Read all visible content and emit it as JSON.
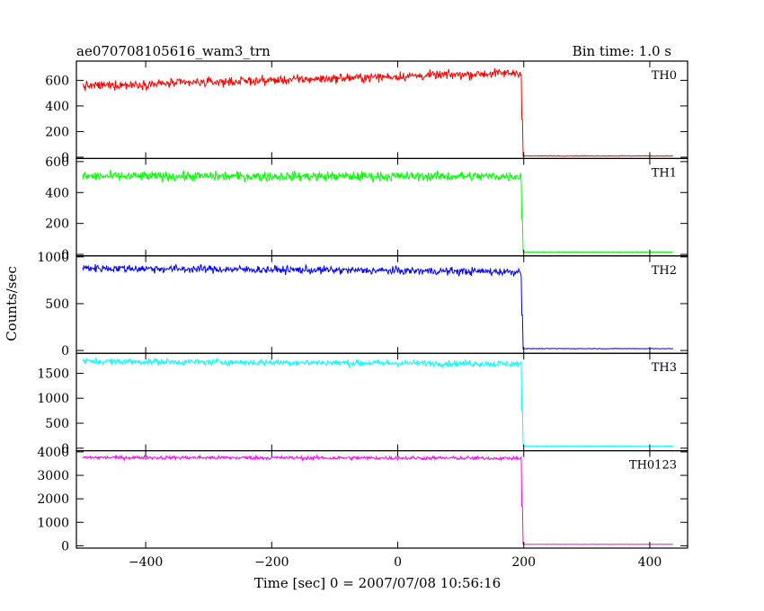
{
  "chart_data": {
    "type": "line",
    "title": "ae070708105616_wam3_trn",
    "subtitle": "Bin time: 1.0 s",
    "xlabel": "Time [sec] 0 = 2007/07/08 10:56:16",
    "ylabel": "Counts/sec",
    "xlim": [
      -510,
      460
    ],
    "x_ticks": [
      -400,
      -200,
      0,
      200,
      400
    ],
    "x_tick_labels": [
      "−400",
      "−200",
      "0",
      "200",
      "400"
    ],
    "grid": false,
    "data_start": -500,
    "data_end": 437,
    "drop_time": 197,
    "panels": [
      {
        "name": "TH0",
        "color": "#ff0000",
        "ylim": [
          -10,
          750
        ],
        "yticks": [
          0,
          200,
          400,
          600
        ],
        "pre_start": 555,
        "pre_end": 660,
        "noise": 25,
        "post": 10
      },
      {
        "name": "TH1",
        "color": "#00ff00",
        "ylim": [
          -10,
          620
        ],
        "yticks": [
          0,
          200,
          400,
          600
        ],
        "pre_start": 505,
        "pre_end": 505,
        "noise": 22,
        "post": 15
      },
      {
        "name": "TH2",
        "color": "#0000ff",
        "ylim": [
          -30,
          1010
        ],
        "yticks": [
          0,
          500,
          1000
        ],
        "pre_start": 880,
        "pre_end": 840,
        "noise": 30,
        "post": 20
      },
      {
        "name": "TH3",
        "color": "#00ffff",
        "ylim": [
          -50,
          1900
        ],
        "yticks": [
          0,
          500,
          1000,
          1500
        ],
        "pre_start": 1740,
        "pre_end": 1690,
        "noise": 45,
        "post": 40
      },
      {
        "name": "TH0123",
        "color": "#ff00ff",
        "ylim": [
          -100,
          4050
        ],
        "yticks": [
          0,
          1000,
          2000,
          3000,
          4000
        ],
        "pre_start": 3760,
        "pre_end": 3730,
        "noise": 55,
        "post": 60
      }
    ]
  }
}
